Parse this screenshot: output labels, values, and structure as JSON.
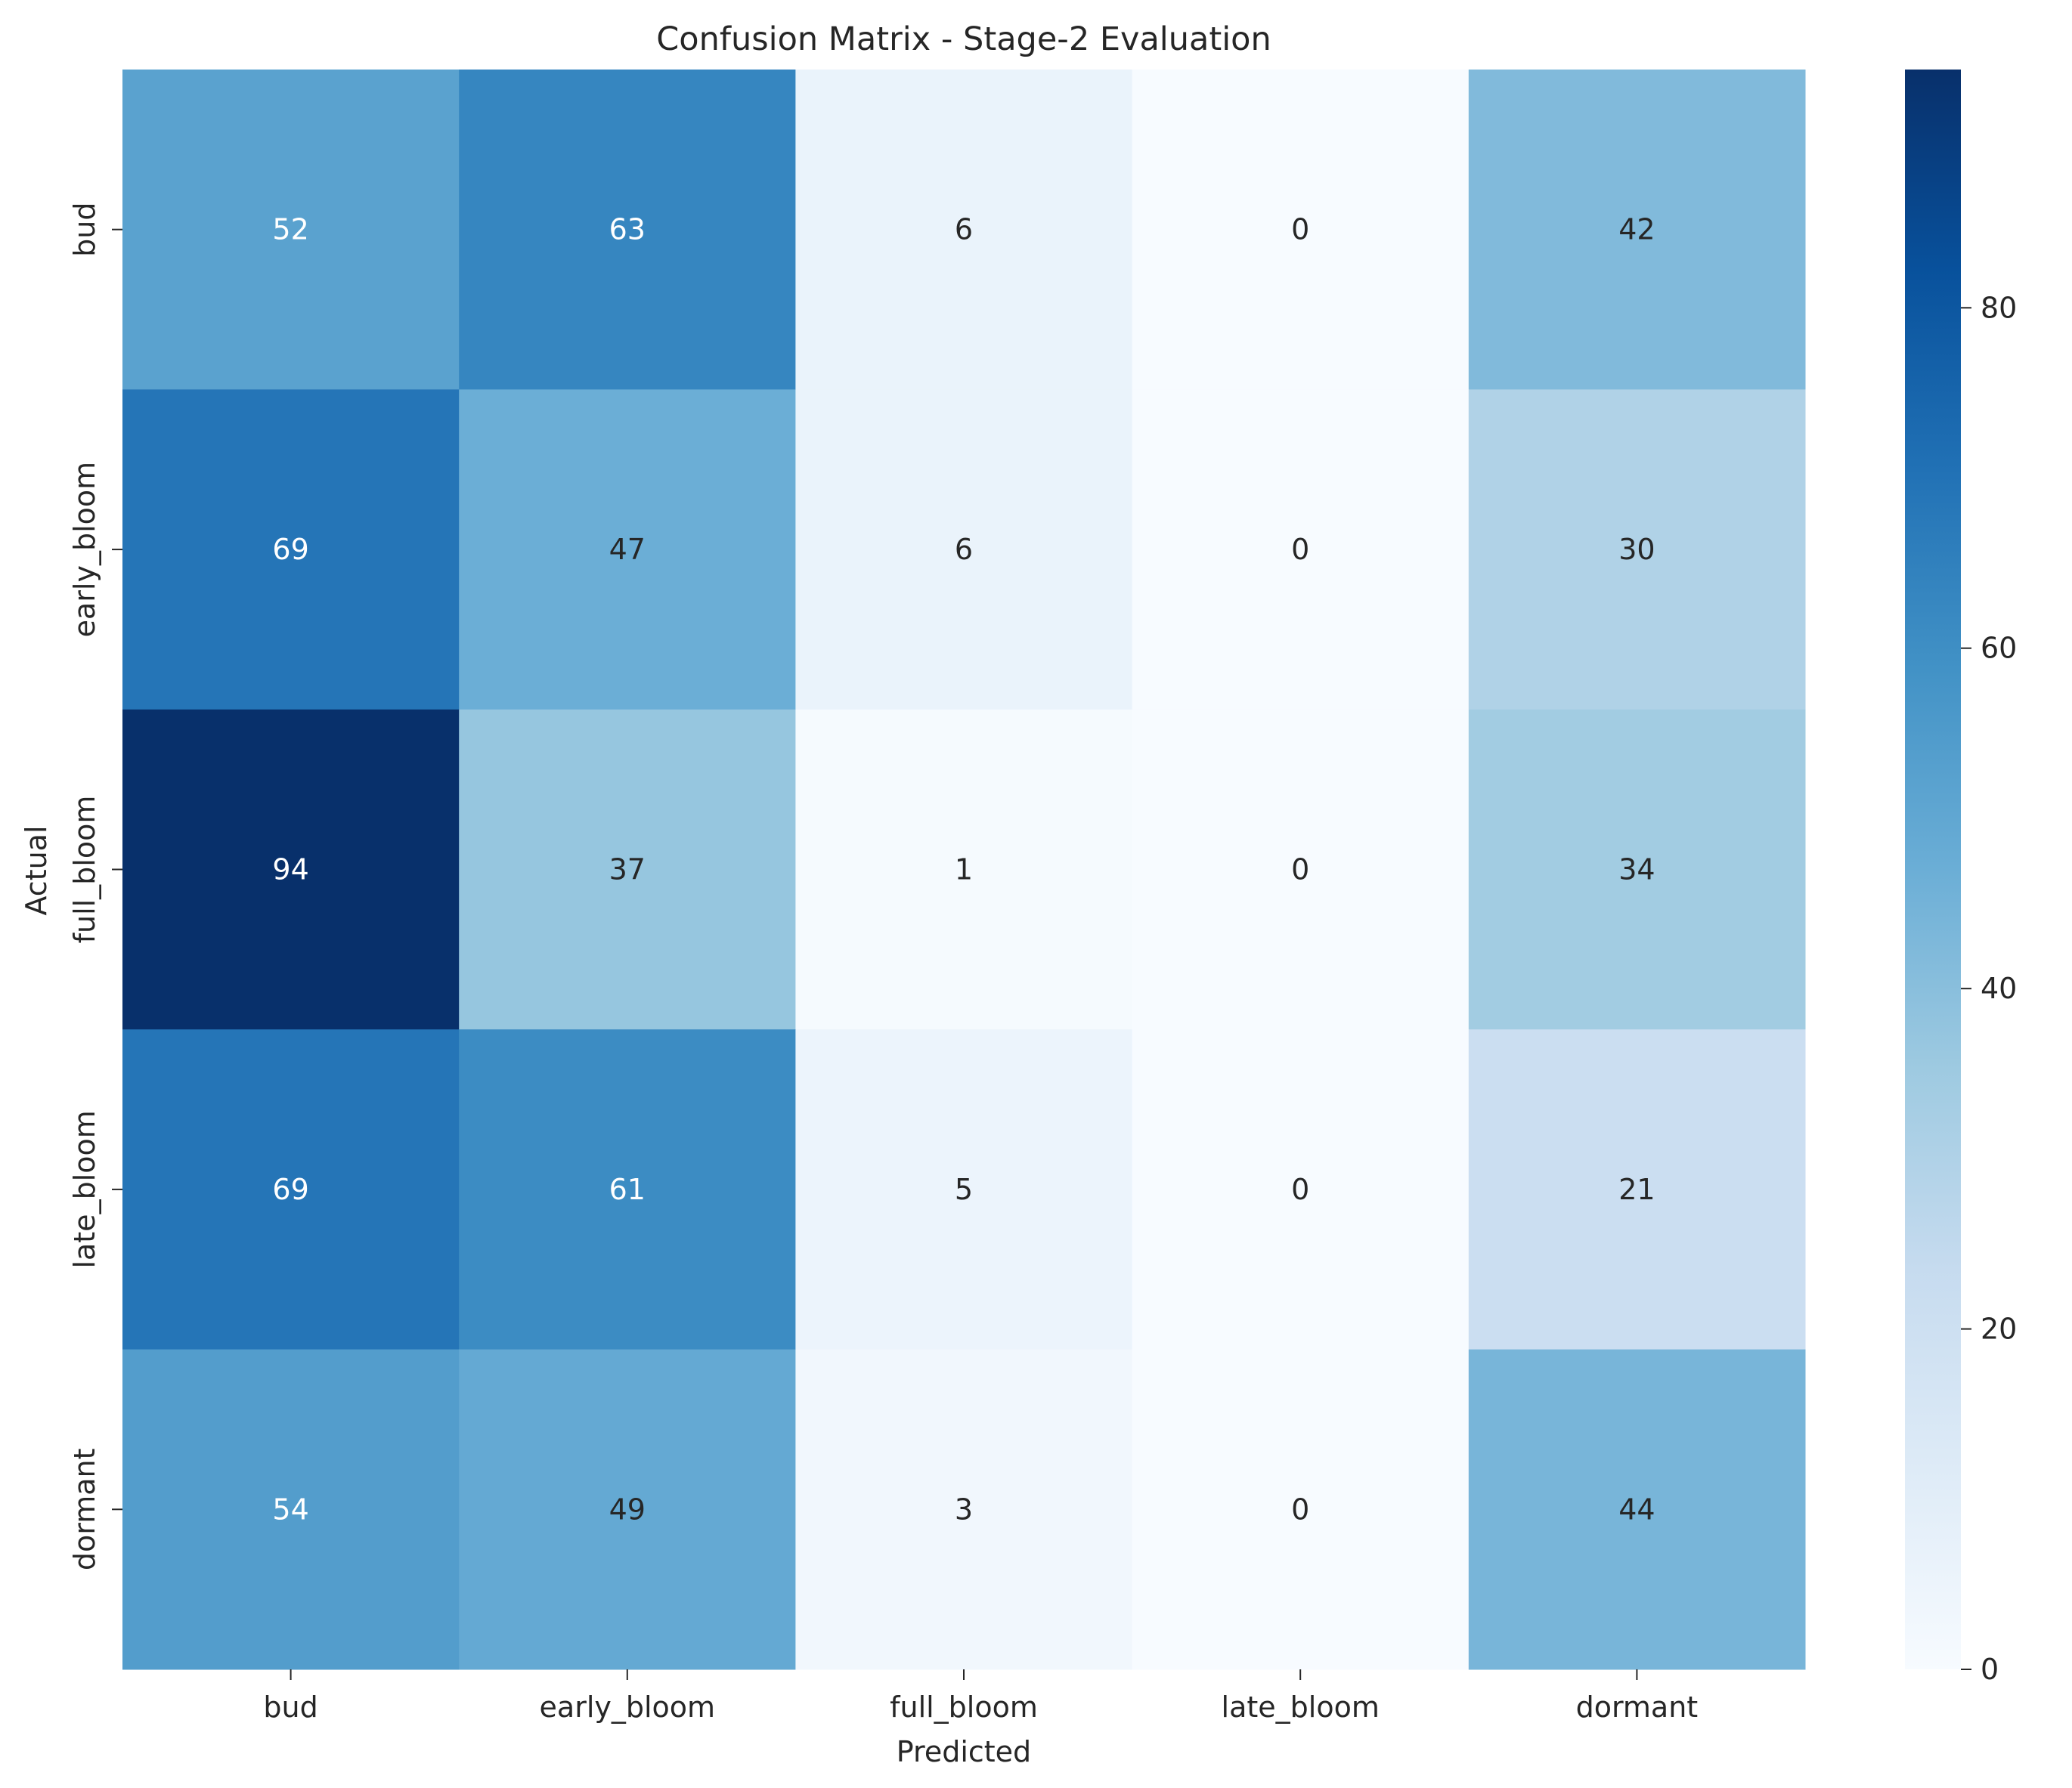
{
  "chart_data": {
    "type": "heatmap",
    "title": "Confusion Matrix - Stage-2 Evaluation",
    "xlabel": "Predicted",
    "ylabel": "Actual",
    "x_categories": [
      "bud",
      "early_bloom",
      "full_bloom",
      "late_bloom",
      "dormant"
    ],
    "y_categories": [
      "bud",
      "early_bloom",
      "full_bloom",
      "late_bloom",
      "dormant"
    ],
    "values": [
      [
        52,
        63,
        6,
        0,
        42
      ],
      [
        69,
        47,
        6,
        0,
        30
      ],
      [
        94,
        37,
        1,
        0,
        34
      ],
      [
        69,
        61,
        5,
        0,
        21
      ],
      [
        54,
        49,
        3,
        0,
        44
      ]
    ],
    "colormap": "Blues",
    "colorbar": {
      "range": [
        0,
        94
      ],
      "ticks": [
        0,
        20,
        40,
        60,
        80
      ]
    },
    "grid": false
  }
}
